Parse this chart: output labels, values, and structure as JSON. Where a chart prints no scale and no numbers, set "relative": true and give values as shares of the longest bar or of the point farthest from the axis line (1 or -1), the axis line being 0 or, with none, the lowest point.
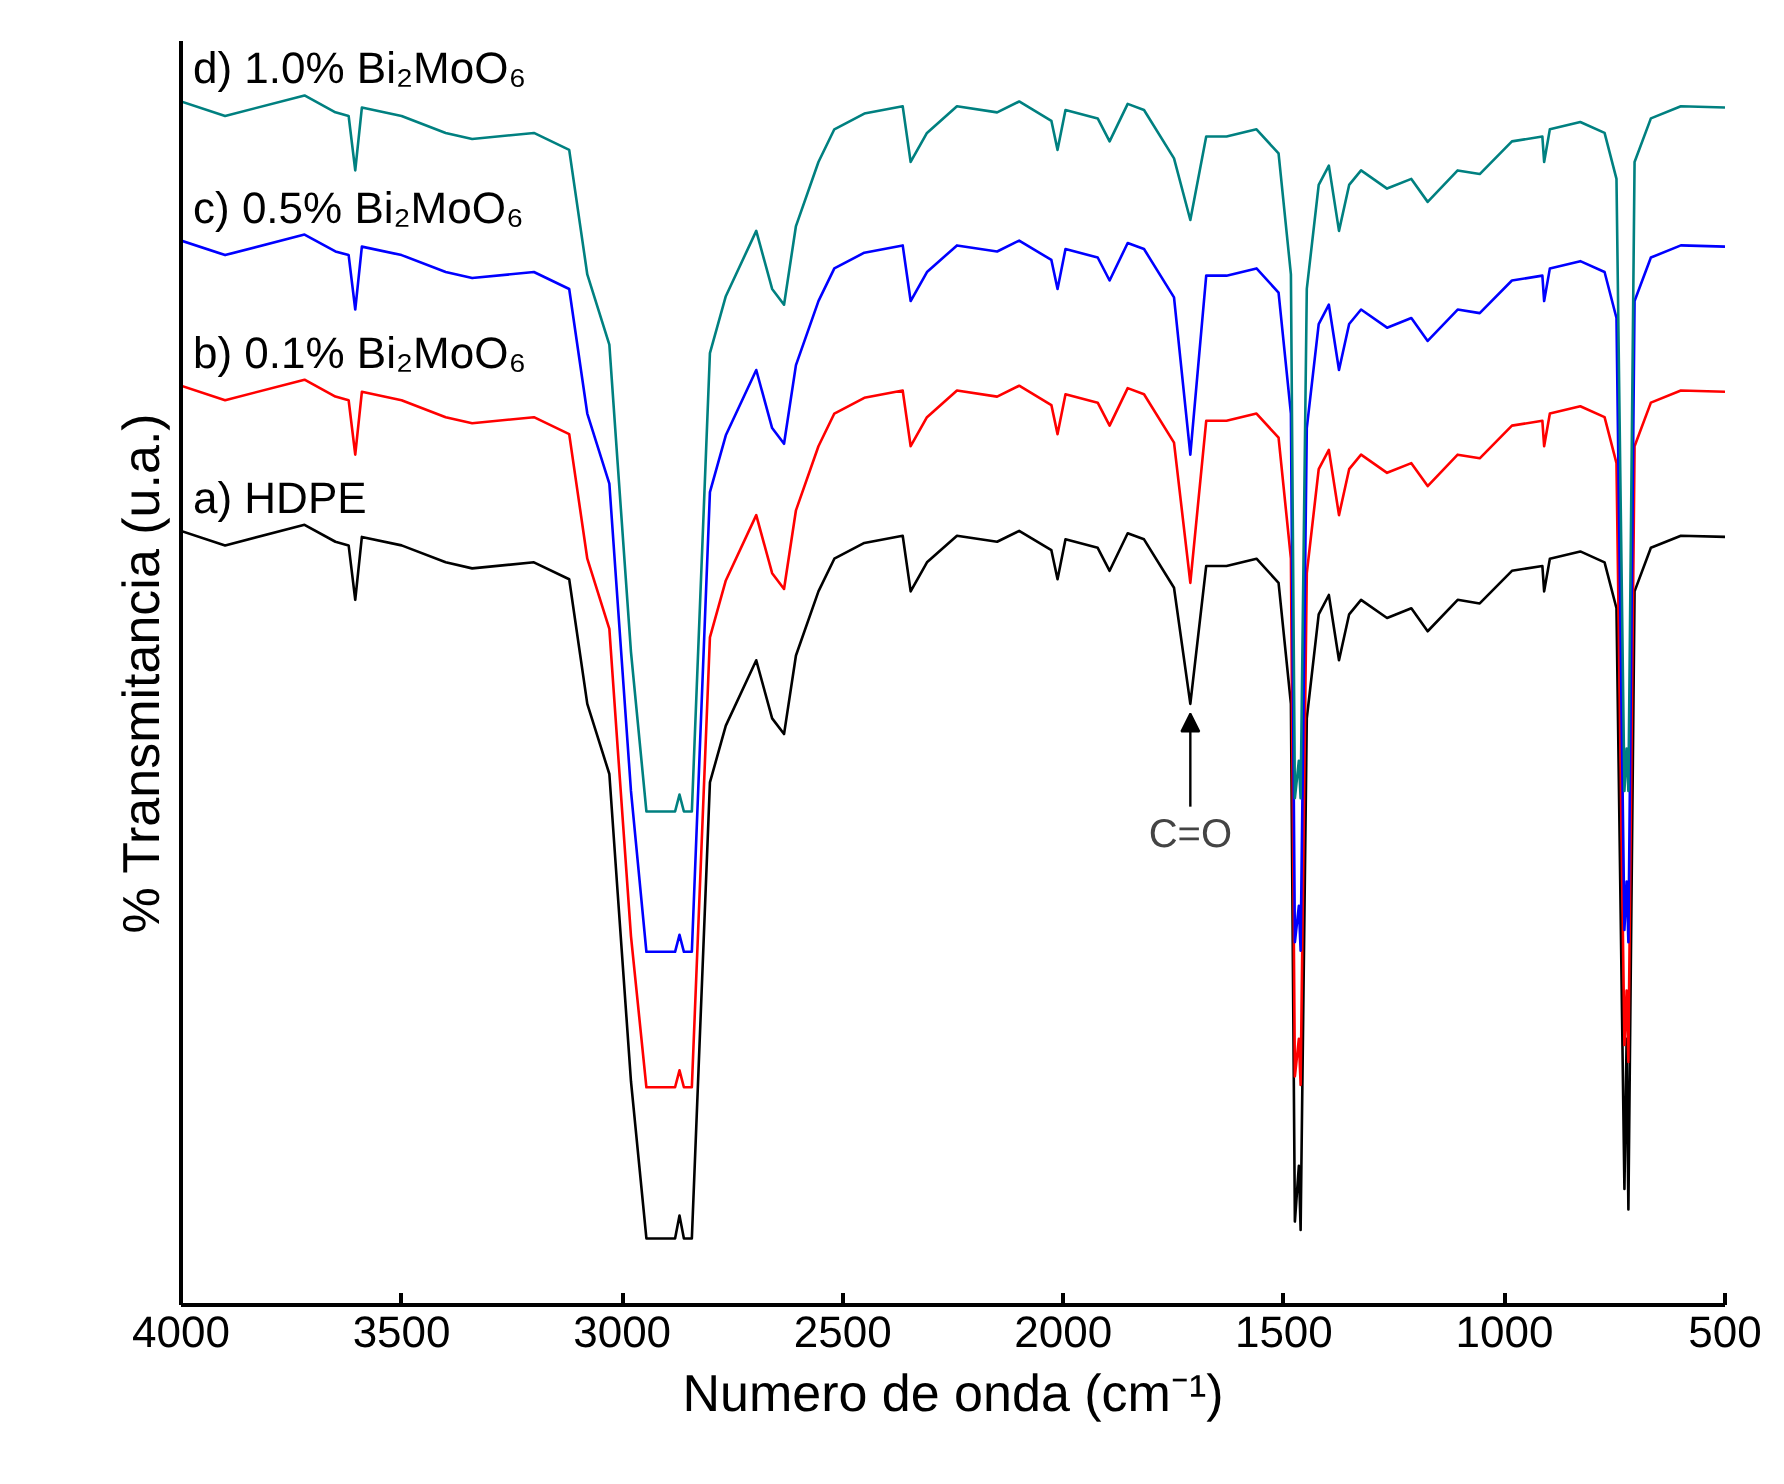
{
  "chart_data": {
    "type": "line",
    "relative": true,
    "xlabel": "Numero de onda (cm⁻¹)",
    "ylabel": "% Transmitancia (u.a.)",
    "xlim": [
      4000,
      500
    ],
    "xticks": [
      4000,
      3500,
      3000,
      2500,
      2000,
      1500,
      1000,
      500
    ],
    "tick_labels": "x",
    "grid": false,
    "marker": "none",
    "line_style": "solid",
    "x": [
      4000,
      3900,
      3720,
      3650,
      3620,
      3605,
      3590,
      3500,
      3400,
      3340,
      3200,
      3120,
      3079,
      3029,
      3010,
      2980,
      2945,
      2880,
      2870,
      2860,
      2842,
      2801,
      2765,
      2696,
      2660,
      2633,
      2606,
      2555,
      2519,
      2451,
      2364,
      2346,
      2309,
      2241,
      2150,
      2100,
      2027,
      2013,
      1995,
      1922,
      1895,
      1854,
      1817,
      1749,
      1712,
      1676,
      1630,
      1562,
      1512,
      1484,
      1475,
      1466,
      1462,
      1448,
      1421,
      1398,
      1375,
      1352,
      1325,
      1266,
      1211,
      1174,
      1106,
      1056,
      983,
      914,
      910,
      897,
      828,
      773,
      746,
      728,
      723,
      719,
      705,
      668,
      600,
      500
    ],
    "series": [
      {
        "name": "a) HDPE",
        "color": "#000000",
        "values": [
          0.64,
          0.628,
          0.645,
          0.631,
          0.628,
          0.583,
          0.635,
          0.628,
          0.614,
          0.609,
          0.614,
          0.6,
          0.497,
          0.439,
          0.34,
          0.185,
          0.055,
          0.055,
          0.074,
          0.055,
          0.055,
          0.432,
          0.479,
          0.533,
          0.485,
          0.472,
          0.537,
          0.59,
          0.617,
          0.63,
          0.636,
          0.59,
          0.614,
          0.636,
          0.631,
          0.64,
          0.624,
          0.6,
          0.633,
          0.626,
          0.607,
          0.638,
          0.633,
          0.593,
          0.497,
          0.611,
          0.611,
          0.617,
          0.597,
          0.497,
          0.069,
          0.115,
          0.062,
          0.485,
          0.571,
          0.587,
          0.533,
          0.571,
          0.583,
          0.568,
          0.576,
          0.557,
          0.583,
          0.58,
          0.607,
          0.611,
          0.59,
          0.617,
          0.623,
          0.614,
          0.576,
          0.096,
          0.22,
          0.079,
          0.59,
          0.626,
          0.636,
          0.635
        ]
      },
      {
        "name": "b) 0.1% Bi₂MoO₆",
        "color": "#ff0000",
        "values": [
          0.76,
          0.748,
          0.765,
          0.751,
          0.748,
          0.703,
          0.755,
          0.748,
          0.734,
          0.729,
          0.734,
          0.72,
          0.617,
          0.559,
          0.46,
          0.305,
          0.18,
          0.18,
          0.194,
          0.18,
          0.18,
          0.552,
          0.599,
          0.653,
          0.605,
          0.592,
          0.657,
          0.71,
          0.737,
          0.75,
          0.756,
          0.71,
          0.734,
          0.756,
          0.751,
          0.76,
          0.744,
          0.72,
          0.753,
          0.746,
          0.727,
          0.758,
          0.753,
          0.713,
          0.597,
          0.731,
          0.731,
          0.737,
          0.717,
          0.617,
          0.189,
          0.22,
          0.182,
          0.605,
          0.691,
          0.707,
          0.653,
          0.691,
          0.703,
          0.688,
          0.696,
          0.677,
          0.703,
          0.7,
          0.727,
          0.731,
          0.71,
          0.737,
          0.743,
          0.734,
          0.696,
          0.215,
          0.26,
          0.201,
          0.71,
          0.746,
          0.756,
          0.755
        ]
      },
      {
        "name": "c) 0.5% Bi₂MoO₆",
        "color": "#0000ff",
        "values": [
          0.88,
          0.868,
          0.885,
          0.871,
          0.868,
          0.823,
          0.875,
          0.868,
          0.854,
          0.849,
          0.854,
          0.84,
          0.737,
          0.679,
          0.58,
          0.425,
          0.292,
          0.292,
          0.306,
          0.292,
          0.292,
          0.672,
          0.719,
          0.773,
          0.725,
          0.712,
          0.777,
          0.83,
          0.857,
          0.87,
          0.876,
          0.83,
          0.854,
          0.876,
          0.871,
          0.88,
          0.864,
          0.84,
          0.873,
          0.866,
          0.847,
          0.878,
          0.873,
          0.833,
          0.703,
          0.851,
          0.851,
          0.857,
          0.837,
          0.737,
          0.3,
          0.33,
          0.293,
          0.725,
          0.811,
          0.827,
          0.773,
          0.811,
          0.823,
          0.808,
          0.816,
          0.797,
          0.823,
          0.82,
          0.847,
          0.851,
          0.83,
          0.857,
          0.863,
          0.854,
          0.816,
          0.31,
          0.35,
          0.3,
          0.83,
          0.866,
          0.876,
          0.875
        ]
      },
      {
        "name": "d) 1.0% Bi₂MoO₆",
        "color": "#008080",
        "values": [
          0.995,
          0.983,
          1.0,
          0.986,
          0.983,
          0.938,
          0.99,
          0.983,
          0.969,
          0.964,
          0.969,
          0.955,
          0.852,
          0.794,
          0.695,
          0.54,
          0.408,
          0.408,
          0.422,
          0.408,
          0.408,
          0.787,
          0.834,
          0.888,
          0.84,
          0.827,
          0.892,
          0.945,
          0.972,
          0.985,
          0.991,
          0.945,
          0.969,
          0.991,
          0.986,
          0.995,
          0.979,
          0.955,
          0.988,
          0.981,
          0.962,
          0.993,
          0.988,
          0.948,
          0.897,
          0.966,
          0.966,
          0.972,
          0.952,
          0.852,
          0.419,
          0.45,
          0.419,
          0.84,
          0.926,
          0.942,
          0.888,
          0.926,
          0.938,
          0.923,
          0.931,
          0.912,
          0.938,
          0.935,
          0.962,
          0.966,
          0.945,
          0.972,
          0.978,
          0.969,
          0.931,
          0.425,
          0.46,
          0.425,
          0.945,
          0.981,
          0.991,
          0.99
        ]
      }
    ],
    "annotations": [
      {
        "text": "C=O",
        "x": 1712,
        "y": 0.497
      }
    ]
  }
}
